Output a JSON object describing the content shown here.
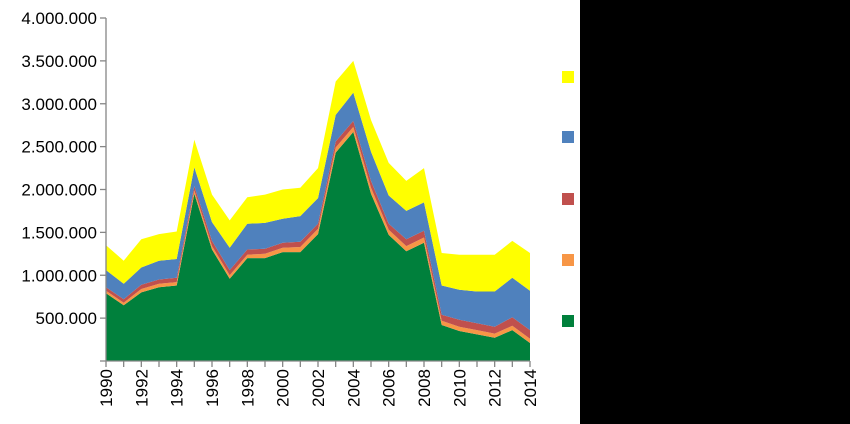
{
  "chart_data": {
    "type": "area",
    "stacked": true,
    "x": [
      1990,
      1991,
      1992,
      1993,
      1994,
      1995,
      1996,
      1997,
      1998,
      1999,
      2000,
      2001,
      2002,
      2003,
      2004,
      2005,
      2006,
      2007,
      2008,
      2009,
      2010,
      2011,
      2012,
      2013,
      2014
    ],
    "x_tick_labels": [
      "1990",
      "1992",
      "1994",
      "1996",
      "1998",
      "2000",
      "2002",
      "2004",
      "2006",
      "2008",
      "2010",
      "2012",
      "2014"
    ],
    "y_tick_labels": [
      "500.000",
      "1.000.000",
      "1.500.000",
      "2.000.000",
      "2.500.000",
      "3.000.000",
      "3.500.000",
      "4.000.000"
    ],
    "ylim": [
      0,
      4000000
    ],
    "title": "",
    "xlabel": "",
    "ylabel": "",
    "grid": false,
    "legend": {
      "position": "right",
      "entries_visible": false
    },
    "series": [
      {
        "color": "#00803C",
        "values": [
          790000,
          650000,
          800000,
          860000,
          880000,
          1950000,
          1300000,
          960000,
          1200000,
          1200000,
          1270000,
          1270000,
          1480000,
          2430000,
          2670000,
          1950000,
          1470000,
          1280000,
          1380000,
          420000,
          350000,
          310000,
          270000,
          360000,
          210000
        ]
      },
      {
        "color": "#F79646",
        "values": [
          30000,
          30000,
          40000,
          40000,
          40000,
          40000,
          40000,
          40000,
          40000,
          50000,
          50000,
          60000,
          60000,
          60000,
          60000,
          70000,
          60000,
          60000,
          60000,
          50000,
          50000,
          50000,
          50000,
          50000,
          50000
        ]
      },
      {
        "color": "#C0504D",
        "values": [
          40000,
          40000,
          50000,
          50000,
          50000,
          50000,
          60000,
          60000,
          60000,
          60000,
          60000,
          60000,
          60000,
          70000,
          70000,
          80000,
          70000,
          80000,
          80000,
          70000,
          80000,
          80000,
          80000,
          100000,
          100000
        ]
      },
      {
        "color": "#4F81BD",
        "values": [
          200000,
          180000,
          200000,
          220000,
          220000,
          220000,
          220000,
          260000,
          300000,
          300000,
          280000,
          300000,
          300000,
          310000,
          330000,
          340000,
          330000,
          330000,
          330000,
          340000,
          350000,
          370000,
          410000,
          460000,
          460000
        ]
      },
      {
        "color": "#FFFF00",
        "values": [
          290000,
          270000,
          330000,
          310000,
          320000,
          320000,
          320000,
          320000,
          310000,
          330000,
          340000,
          330000,
          350000,
          390000,
          370000,
          370000,
          380000,
          350000,
          400000,
          380000,
          410000,
          430000,
          430000,
          430000,
          440000
        ]
      }
    ]
  }
}
